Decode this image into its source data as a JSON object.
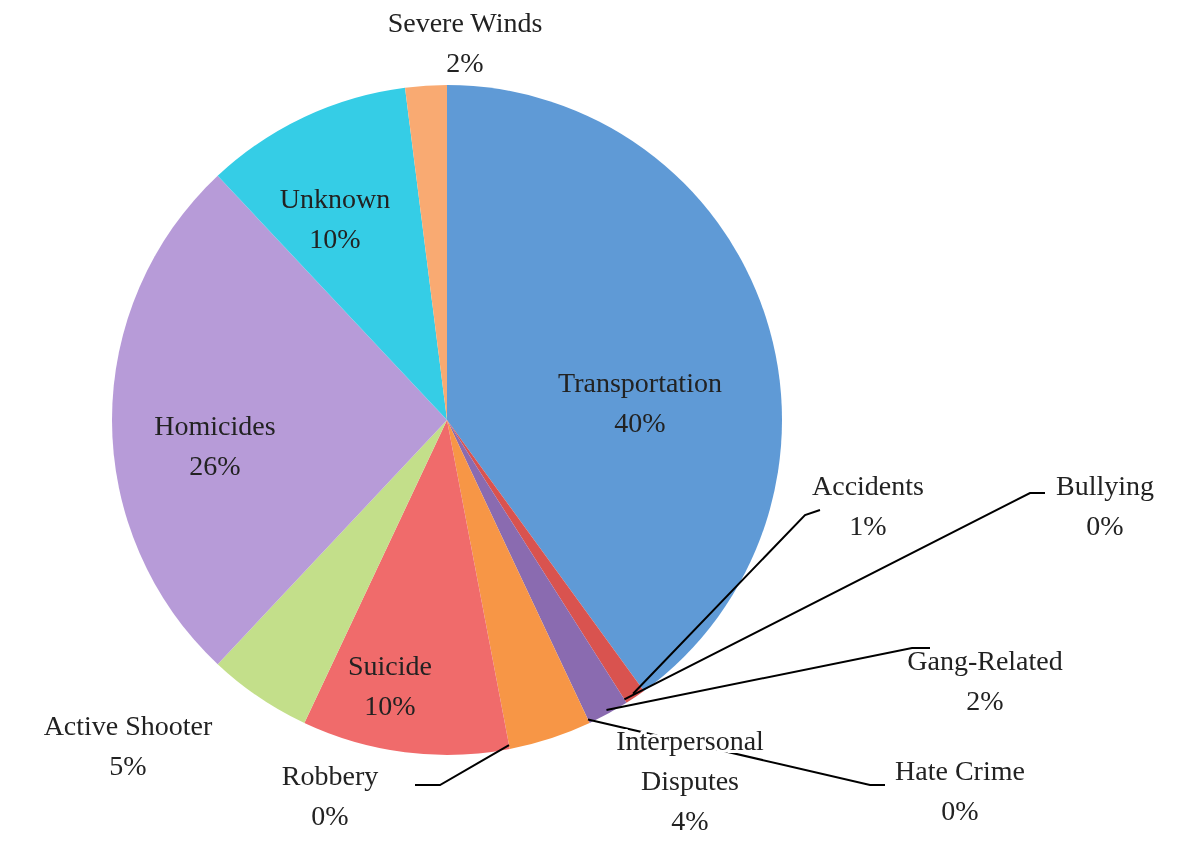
{
  "chart_data": {
    "type": "pie",
    "categories": [
      "Transportation",
      "Accidents",
      "Bullying",
      "Gang-Related",
      "Hate Crime",
      "Interpersonal Disputes",
      "Robbery",
      "Suicide",
      "Active Shooter",
      "Homicides",
      "Unknown",
      "Severe Winds"
    ],
    "values": [
      40,
      1,
      0,
      2,
      0,
      4,
      0,
      10,
      5,
      26,
      10,
      2
    ],
    "value_labels": [
      "40%",
      "1%",
      "0%",
      "2%",
      "0%",
      "4%",
      "0%",
      "10%",
      "5%",
      "26%",
      "10%",
      "2%"
    ],
    "colors": [
      "#5f9ad6",
      "#d9534f",
      "#a6a6a6",
      "#8a6bb0",
      "#4bacc6",
      "#f79646",
      "#4f9fe0",
      "#f06b6b",
      "#c3df8a",
      "#b79bd8",
      "#35cde6",
      "#f9aa72"
    ]
  }
}
